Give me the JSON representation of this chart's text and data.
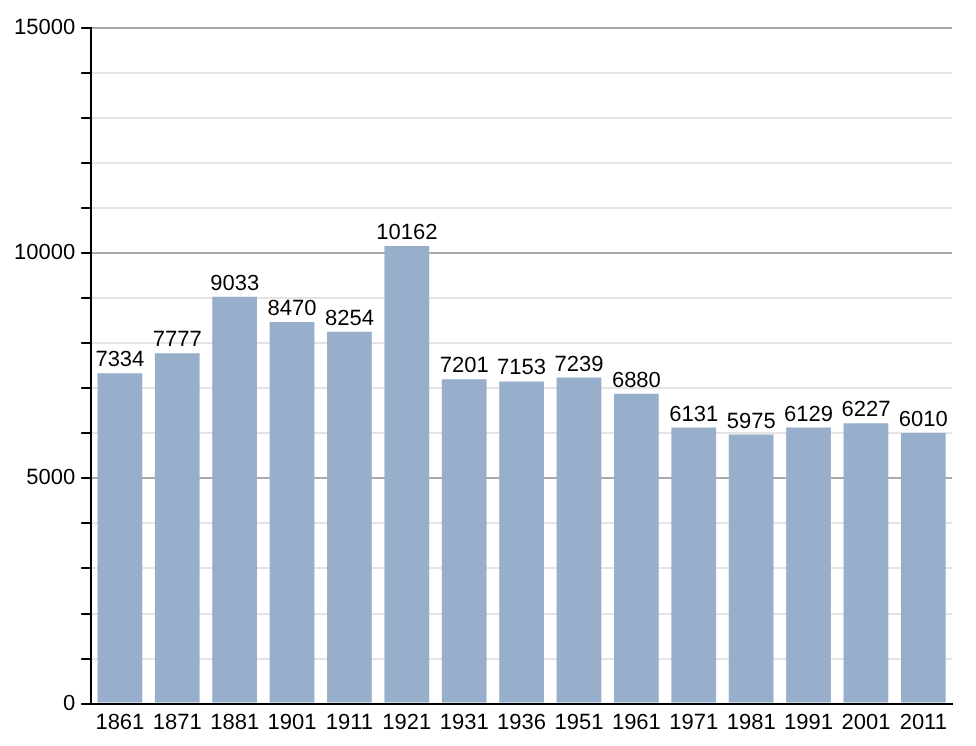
{
  "chart_data": {
    "type": "bar",
    "categories": [
      "1861",
      "1871",
      "1881",
      "1901",
      "1911",
      "1921",
      "1931",
      "1936",
      "1951",
      "1961",
      "1971",
      "1981",
      "1991",
      "2001",
      "2011"
    ],
    "values": [
      7334,
      7777,
      9033,
      8470,
      8254,
      10162,
      7201,
      7153,
      7239,
      6880,
      6131,
      5975,
      6129,
      6227,
      6010
    ],
    "color": "#97afcb",
    "ylim": [
      0,
      15000
    ],
    "yticks": [
      0,
      {
        "value": 1000,
        "label": null
      },
      {
        "value": 2000,
        "label": null
      },
      {
        "value": 3000,
        "label": null
      },
      {
        "value": 4000,
        "label": null
      },
      5000,
      {
        "value": 6000,
        "label": null
      },
      {
        "value": 7000,
        "label": null
      },
      {
        "value": 8000,
        "label": null
      },
      {
        "value": 9000,
        "label": null
      },
      10000,
      {
        "value": 11000,
        "label": null
      },
      {
        "value": 12000,
        "label": null
      },
      {
        "value": 13000,
        "label": null
      },
      {
        "value": 14000,
        "label": null
      },
      15000
    ],
    "grid": "y",
    "data_labels": true
  }
}
